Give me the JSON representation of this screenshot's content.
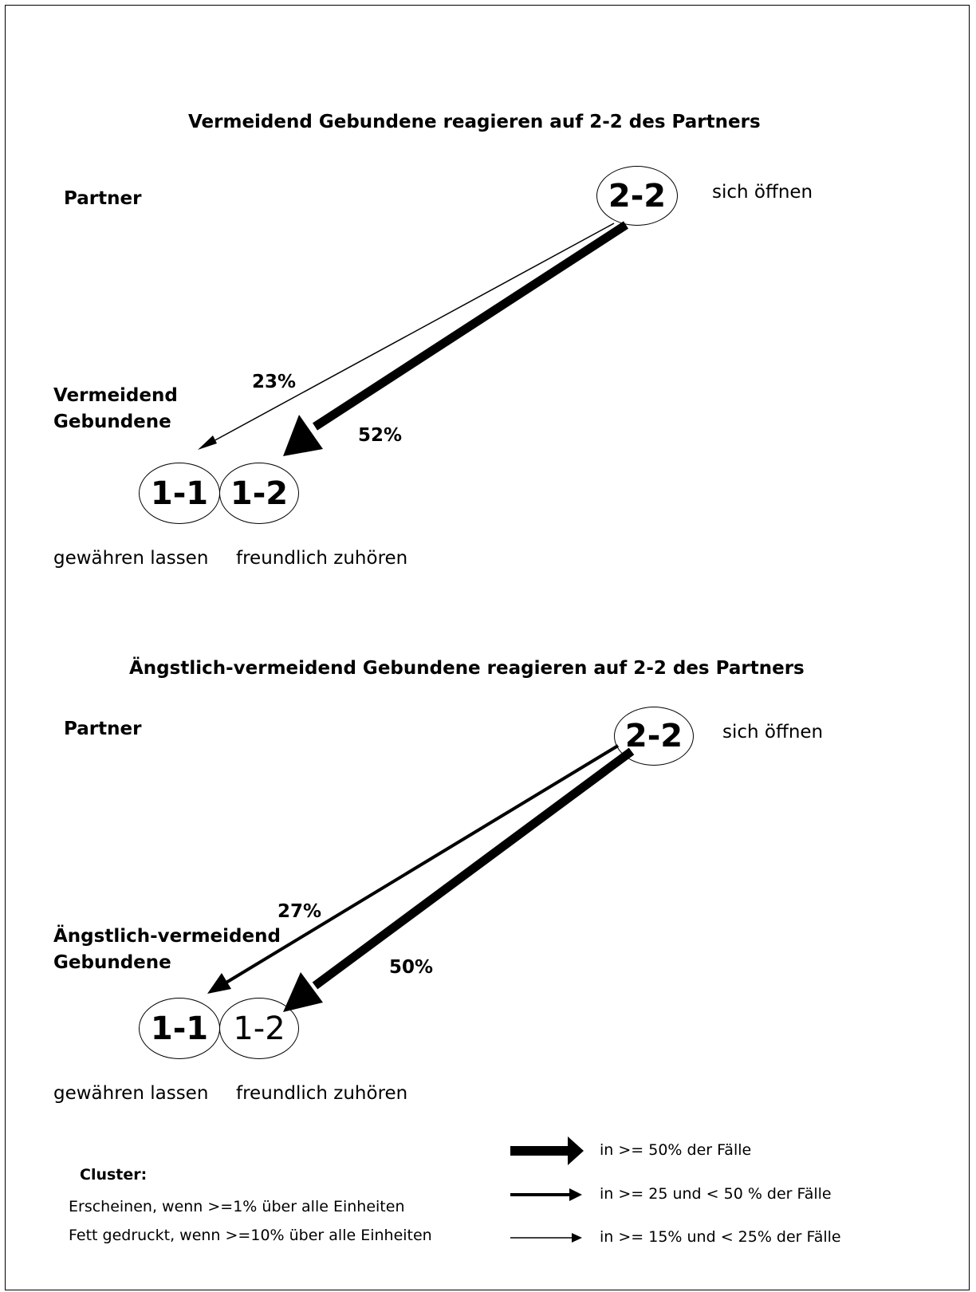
{
  "panels": [
    {
      "title": "Vermeidend  Gebundene reagieren auf 2-2 des Partners",
      "partner_label": "Partner",
      "source_node": {
        "label": "2-2",
        "bold": true,
        "description": "sich öffnen"
      },
      "group_label_line1": "Vermeidend",
      "group_label_line2": "Gebundene",
      "targets": [
        {
          "label": "1-1",
          "bold": true,
          "description": "gewähren lassen"
        },
        {
          "label": "1-2",
          "bold": true,
          "description": "freundlich zuhören"
        }
      ],
      "edges": [
        {
          "from": "2-2",
          "to": "1-1",
          "percent": "23%",
          "strength": "thin"
        },
        {
          "from": "2-2",
          "to": "1-2",
          "percent": "52%",
          "strength": "thick"
        }
      ]
    },
    {
      "title": "Ängstlich-vermeidend Gebundene reagieren auf 2-2 des Partners",
      "partner_label": "Partner",
      "source_node": {
        "label": "2-2",
        "bold": true,
        "description": "sich öffnen"
      },
      "group_label_line1": "Ängstlich-vermeidend",
      "group_label_line2": "Gebundene",
      "targets": [
        {
          "label": "1-1",
          "bold": true,
          "description": "gewähren lassen"
        },
        {
          "label": "1-2",
          "bold": false,
          "description": "freundlich zuhören"
        }
      ],
      "edges": [
        {
          "from": "2-2",
          "to": "1-1",
          "percent": "27%",
          "strength": "medium"
        },
        {
          "from": "2-2",
          "to": "1-2",
          "percent": "50%",
          "strength": "thick"
        }
      ]
    }
  ],
  "legend": {
    "cluster_title": "Cluster:",
    "cluster_line1": "Erscheinen, wenn >=1% über alle Einheiten",
    "cluster_line2": "Fett gedruckt, wenn >=10% über alle Einheiten",
    "arrows": [
      {
        "strength": "thick",
        "label": "in >= 50% der Fälle"
      },
      {
        "strength": "medium",
        "label": "in >= 25 und < 50 % der Fälle"
      },
      {
        "strength": "thin",
        "label": "in >= 15% und < 25% der Fälle"
      }
    ]
  }
}
